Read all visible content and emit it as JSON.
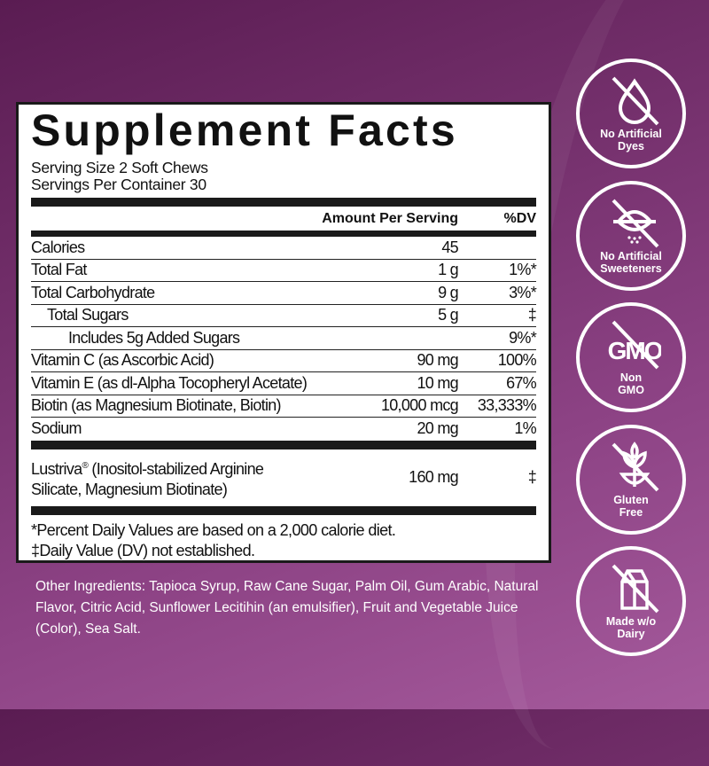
{
  "facts": {
    "title": "Supplement Facts",
    "serving_size": "Serving Size 2 Soft Chews",
    "servings_per_container": "Servings Per Container 30",
    "header": {
      "amount": "Amount Per Serving",
      "dv": "%DV"
    },
    "rows": [
      {
        "name": "Calories",
        "amount": "45",
        "dv": ""
      },
      {
        "name": "Total Fat",
        "amount": "1 g",
        "dv": "1%*"
      },
      {
        "name": "Total Carbohydrate",
        "amount": "9 g",
        "dv": "3%*"
      },
      {
        "name": "Total Sugars",
        "amount": "5 g",
        "dv": "‡"
      },
      {
        "name": "Includes 5g Added Sugars",
        "amount": "",
        "dv": "9%*"
      },
      {
        "name": "Vitamin C (as Ascorbic Acid)",
        "amount": "90 mg",
        "dv": "100%"
      },
      {
        "name": "Vitamin E (as dl-Alpha Tocopheryl Acetate)",
        "amount": "10 mg",
        "dv": "67%"
      },
      {
        "name": "Biotin (as Magnesium Biotinate, Biotin)",
        "amount": "10,000 mcg",
        "dv": "33,333%"
      },
      {
        "name": "Sodium",
        "amount": "20 mg",
        "dv": "1%"
      }
    ],
    "lustriva": {
      "name": "Lustriva",
      "mark": "®",
      "line1": " (Inositol-stabilized Arginine",
      "line2": "Silicate, Magnesium Biotinate)",
      "amount": "160 mg",
      "dv": "‡"
    },
    "footnote1": "*Percent Daily Values are based on a 2,000 calorie diet.",
    "footnote2": "‡Daily Value (DV) not established."
  },
  "other_ingredients": "Other Ingredients: Tapioca Syrup, Raw Cane Sugar, Palm Oil, Gum Arabic, Natural Flavor, Citric Acid, Sunflower Lecitihin (an emulsifier), Fruit and Vegetable Juice (Color), Sea Salt.",
  "badges": [
    {
      "icon": "no-drop-icon",
      "line1": "No Artificial",
      "line2": "Dyes"
    },
    {
      "icon": "no-sweetener-icon",
      "line1": "No Artificial",
      "line2": "Sweeteners"
    },
    {
      "icon": "no-gmo-icon",
      "line1": "Non",
      "line2": "GMO",
      "icon_text": "GMO"
    },
    {
      "icon": "no-wheat-icon",
      "line1": "Gluten",
      "line2": "Free"
    },
    {
      "icon": "no-milk-carton-icon",
      "line1": "Made w/o",
      "line2": "Dairy"
    }
  ],
  "colors": {
    "background_top": "#5a1c52",
    "background_bottom": "#a55a9c",
    "panel": "#ffffff",
    "text": "#111111"
  }
}
